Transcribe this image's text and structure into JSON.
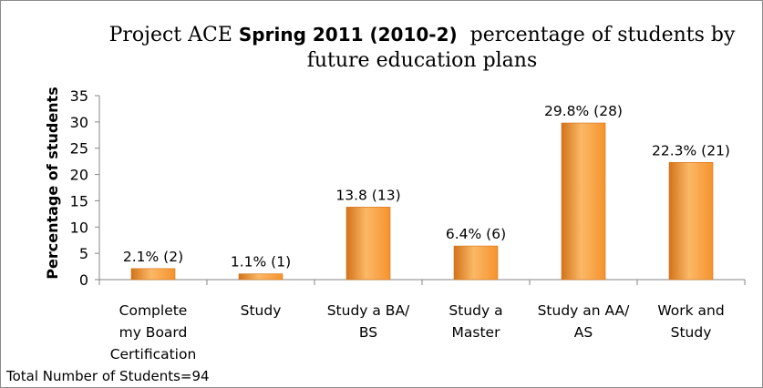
{
  "chart_data": {
    "type": "bar",
    "title": {
      "line1_prefix": "Project ACE ",
      "line1_bold": "Spring 2011 (2010-2)",
      "line1_suffix": "  percentage of students by",
      "line2": "future education plans"
    },
    "ylabel": "Percentage of students",
    "xlabel": "",
    "ylim": [
      0,
      35
    ],
    "yticks": [
      0,
      5,
      10,
      15,
      20,
      25,
      30,
      35
    ],
    "grid": false,
    "categories": [
      [
        "Complete",
        "my Board",
        "Certification"
      ],
      [
        "Study"
      ],
      [
        "Study a BA/",
        "BS"
      ],
      [
        "Study a",
        "Master"
      ],
      [
        "Study an AA/",
        "AS"
      ],
      [
        "Work and",
        "Study"
      ]
    ],
    "values": [
      2.1,
      1.1,
      13.8,
      6.4,
      29.8,
      22.3
    ],
    "data_labels": [
      "2.1% (2)",
      "1.1% (1)",
      "13.8 (13)",
      "6.4% (6)",
      "29.8% (28)",
      "22.3% (21)"
    ],
    "colors": {
      "bar_light": "#fbb866",
      "bar_main": "#f5932d",
      "bar_dark": "#d2731a",
      "axis": "#868686"
    },
    "footnote": "Total Number of Students=94"
  }
}
